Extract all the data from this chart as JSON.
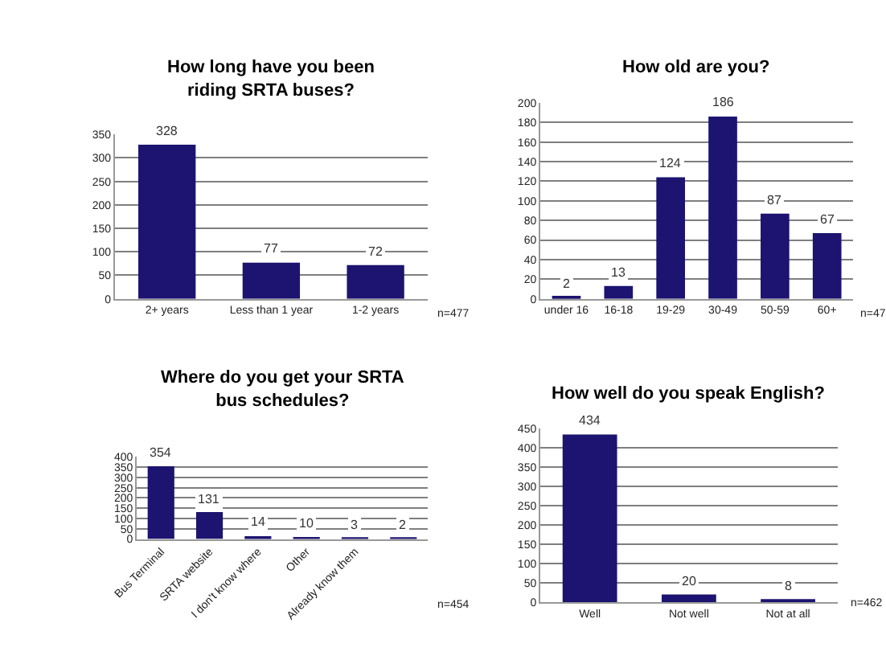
{
  "chart_data": [
    {
      "type": "bar",
      "title": "How long have you been riding SRTA buses?",
      "categories": [
        "2+ years",
        "Less than 1 year",
        "1-2 years"
      ],
      "values": [
        328,
        77,
        72
      ],
      "color": "#1c1470",
      "ylim": [
        0,
        350
      ],
      "yticks": [
        0,
        50,
        100,
        150,
        200,
        250,
        300,
        350
      ],
      "grid": "y",
      "data_labels": true,
      "annotations": [
        "n=477"
      ]
    },
    {
      "type": "bar",
      "title": "How old are you?",
      "categories": [
        "under 16",
        "16-18",
        "19-29",
        "30-49",
        "50-59",
        "60+"
      ],
      "values": [
        2,
        13,
        124,
        186,
        87,
        67
      ],
      "color": "#1c1470",
      "ylim": [
        0,
        200
      ],
      "yticks": [
        0,
        20,
        40,
        60,
        80,
        100,
        120,
        140,
        160,
        180,
        200
      ],
      "grid": "y",
      "data_labels": true,
      "annotations": [
        "n=47"
      ]
    },
    {
      "type": "bar",
      "title": "Where do you get your SRTA bus schedules?",
      "categories": [
        "Bus Terminal",
        "SRTA website",
        "I don't know where",
        "Other",
        "Already know them",
        null
      ],
      "values": [
        354,
        131,
        14,
        10,
        3,
        2
      ],
      "color": "#1c1470",
      "ylim": [
        0,
        400
      ],
      "yticks": [
        0,
        50,
        100,
        150,
        200,
        250,
        300,
        350,
        400
      ],
      "grid": "y",
      "data_labels": true,
      "annotations": [
        "n=454"
      ]
    },
    {
      "type": "bar",
      "title": "How well do you speak English?",
      "categories": [
        "Well",
        "Not well",
        "Not at all"
      ],
      "values": [
        434,
        20,
        8
      ],
      "color": "#1c1470",
      "ylim": [
        0,
        450
      ],
      "yticks": [
        0,
        50,
        100,
        150,
        200,
        250,
        300,
        350,
        400,
        450
      ],
      "grid": "y",
      "data_labels": true,
      "annotations": [
        "n=462"
      ]
    }
  ]
}
